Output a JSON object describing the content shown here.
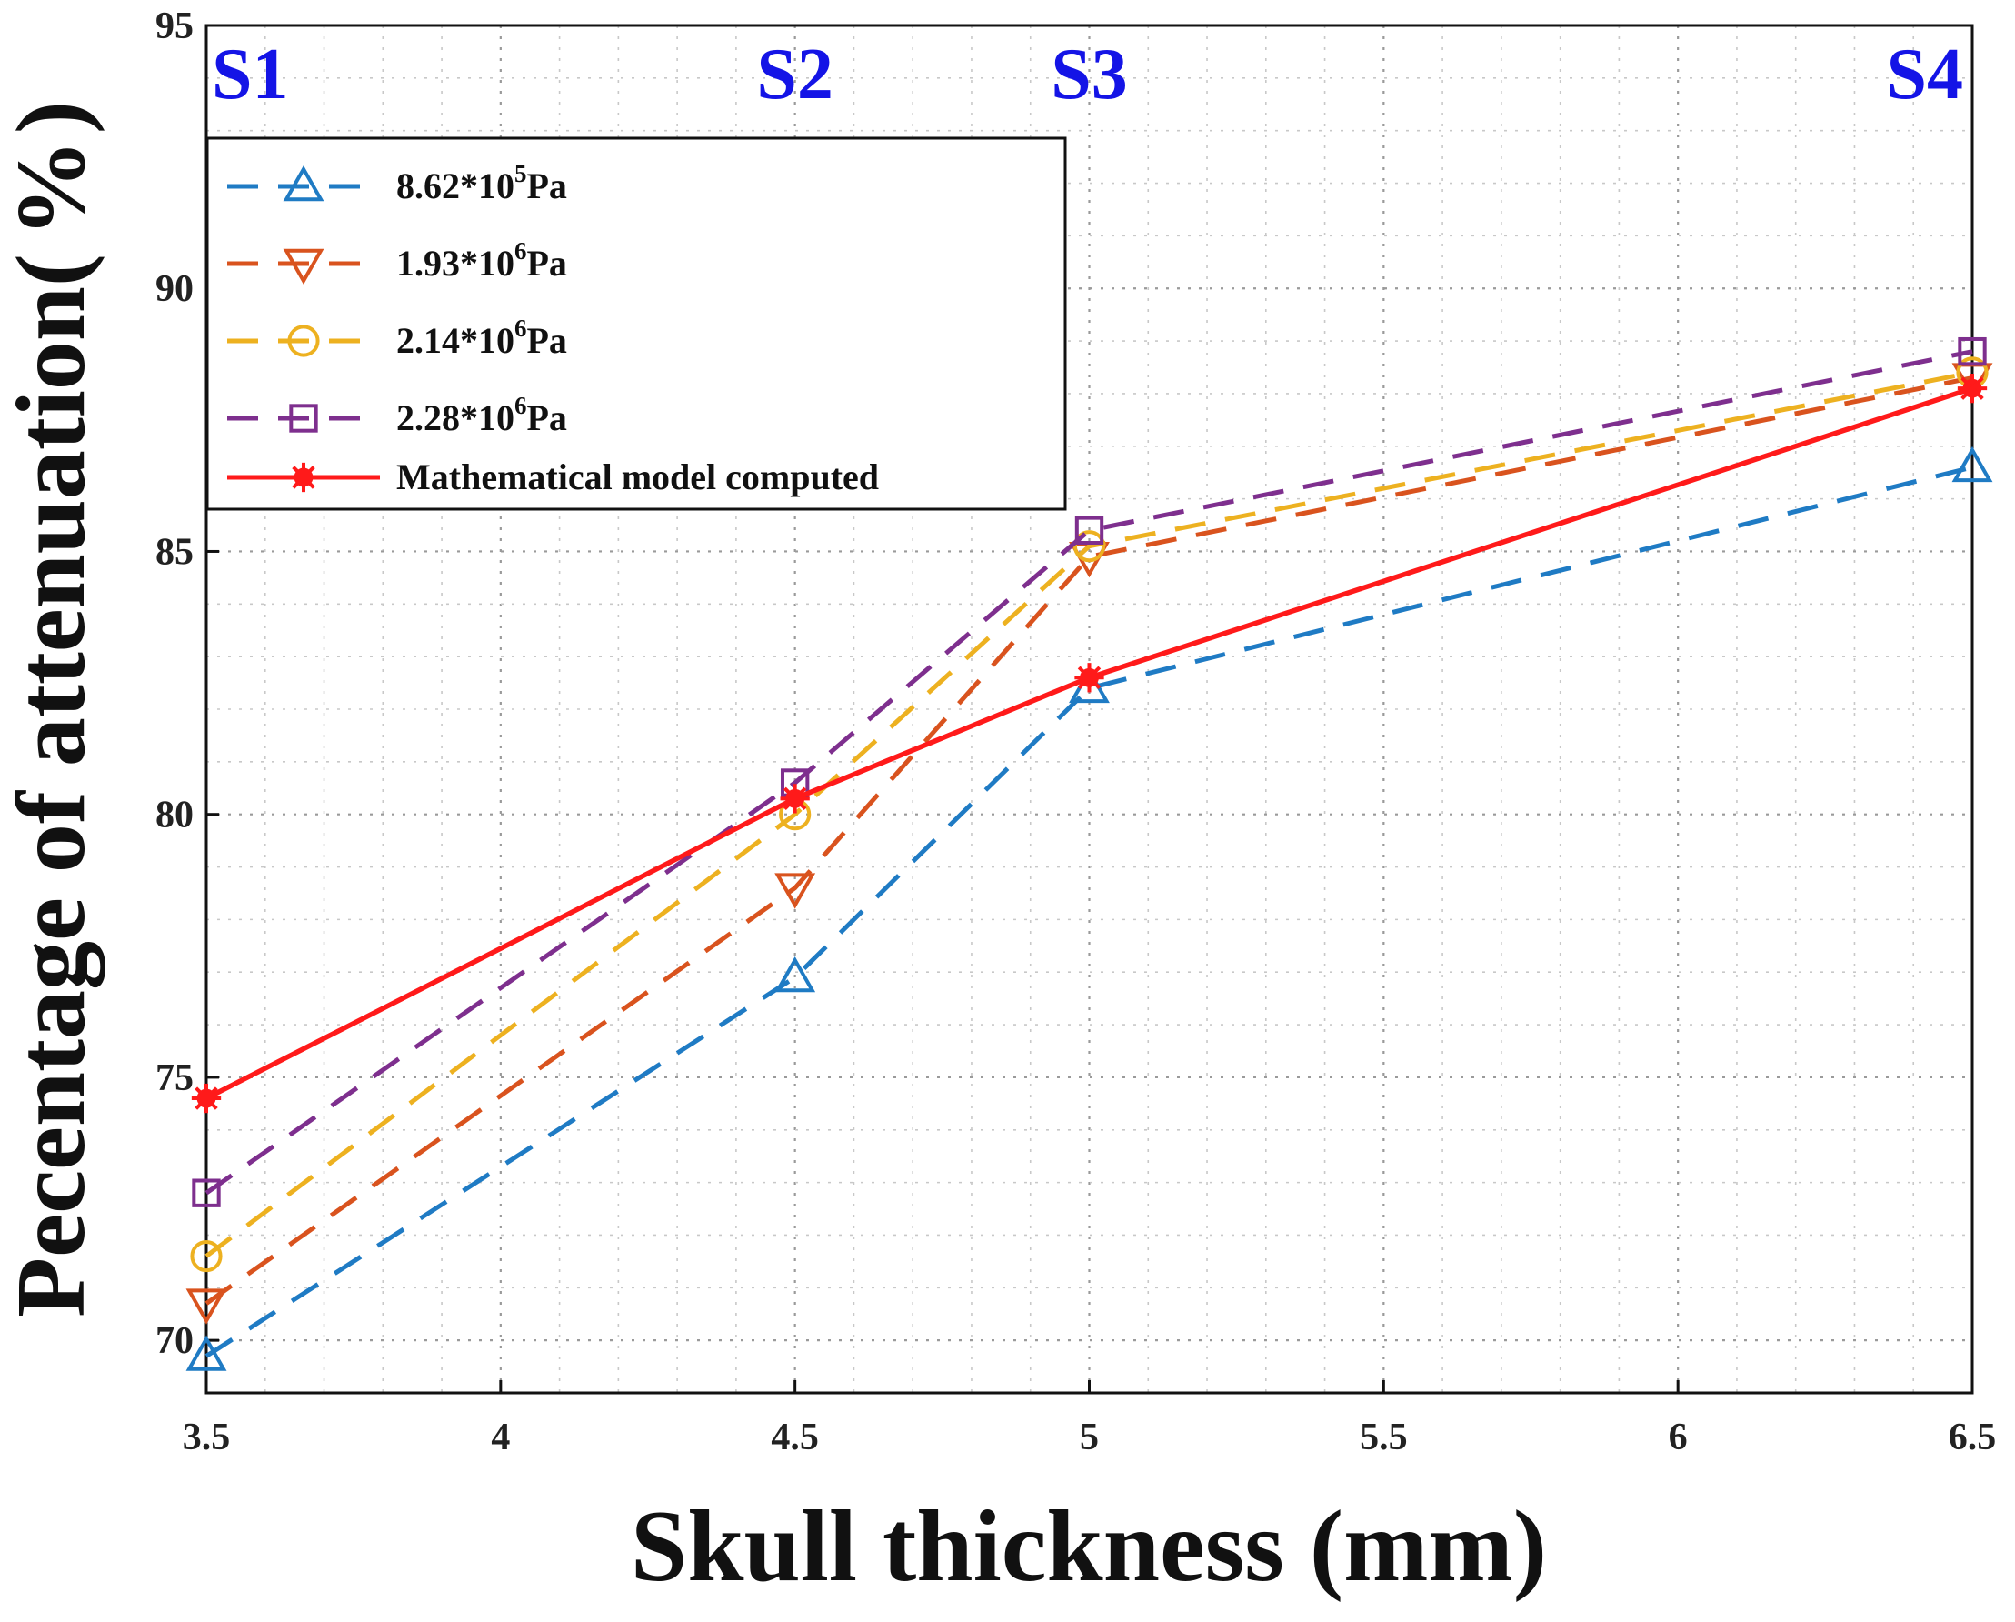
{
  "chart_data": {
    "type": "line",
    "title": "",
    "xlabel": "Skull thickness (mm)",
    "ylabel": "Pecentage of attenuation(%)",
    "ylabel_parts": {
      "text": "Pecentage of attenuation(",
      "unit": "%",
      "close": ")"
    },
    "xlim": [
      3.5,
      6.5
    ],
    "ylim": [
      69,
      95
    ],
    "x": [
      3.5,
      4.5,
      5,
      6.5
    ],
    "xticks": [
      3.5,
      4,
      4.5,
      5,
      5.5,
      6,
      6.5
    ],
    "xtick_labels": [
      "3.5",
      "4",
      "4.5",
      "5",
      "5.5",
      "6",
      "6.5"
    ],
    "yticks": [
      70,
      75,
      80,
      85,
      90,
      95
    ],
    "ytick_labels": [
      "70",
      "75",
      "80",
      "85",
      "90",
      "95"
    ],
    "grid": true,
    "legend_position": "upper-left",
    "stage_labels": [
      {
        "text": "S1",
        "x": 3.5
      },
      {
        "text": "S2",
        "x": 4.5
      },
      {
        "text": "S3",
        "x": 5
      },
      {
        "text": "S4",
        "x": 6.5
      }
    ],
    "series": [
      {
        "name": "8.62*10^5Pa",
        "label": {
          "mant": "8.62*10",
          "exp": "5",
          "unit": "Pa"
        },
        "color": "#1f7bc4",
        "marker": "triangle-up",
        "dash": true,
        "values": [
          69.7,
          76.9,
          82.4,
          86.6
        ]
      },
      {
        "name": "1.93*10^6Pa",
        "label": {
          "mant": "1.93*10",
          "exp": "6",
          "unit": "Pa"
        },
        "color": "#d9531e",
        "marker": "triangle-down",
        "dash": true,
        "values": [
          70.7,
          78.6,
          84.9,
          88.3
        ]
      },
      {
        "name": "2.14*10^6Pa",
        "label": {
          "mant": "2.14*10",
          "exp": "6",
          "unit": "Pa"
        },
        "color": "#edb120",
        "marker": "circle",
        "dash": true,
        "values": [
          71.6,
          80.0,
          85.1,
          88.4
        ]
      },
      {
        "name": "2.28*10^6Pa",
        "label": {
          "mant": "2.28*10",
          "exp": "6",
          "unit": "Pa"
        },
        "color": "#7e2f8e",
        "marker": "square",
        "dash": true,
        "values": [
          72.8,
          80.6,
          85.4,
          88.8
        ]
      },
      {
        "name": "Mathematical model computed",
        "label": {
          "mant": "Mathematical model computed",
          "exp": "",
          "unit": ""
        },
        "color": "#ff1a1a",
        "marker": "asterisk",
        "dash": false,
        "values": [
          74.6,
          80.3,
          82.6,
          88.1
        ]
      }
    ]
  }
}
